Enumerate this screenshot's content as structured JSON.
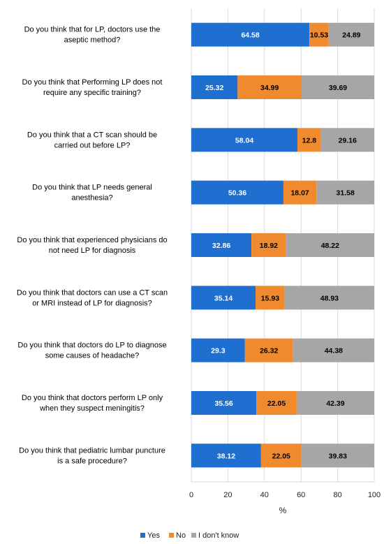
{
  "chart_data": {
    "type": "bar",
    "orientation": "horizontal",
    "stacked": true,
    "xlabel": "%",
    "xlim": [
      0,
      100
    ],
    "xticks": [
      0,
      20,
      40,
      60,
      80,
      100
    ],
    "grid": true,
    "legend_position": "bottom",
    "categories": [
      [
        "Do you think that for LP, doctors use the",
        "aseptic method?"
      ],
      [
        "Do you think that Performing LP does not",
        "require any specific training?"
      ],
      [
        "Do you think that a CT scan should be",
        "carried out before LP?"
      ],
      [
        "Do you think that LP needs general",
        "anesthesia?"
      ],
      [
        "Do you think that experienced physicians do",
        "not need LP for diagnosis"
      ],
      [
        "Do you think that doctors can use a CT scan",
        "or MRI instead of LP for diagnosis?"
      ],
      [
        "Do you think that doctors do LP to diagnose",
        "some causes of headache?"
      ],
      [
        "Do you think that doctors perform LP only",
        "when they suspect meningitis?"
      ],
      [
        "Do you think that pediatric lumbar puncture",
        "is a safe procedure?"
      ]
    ],
    "series": [
      {
        "name": "Yes",
        "color": "#1f6fd1",
        "label_color": "#ffffff",
        "values": [
          64.58,
          25.32,
          58.04,
          50.36,
          32.86,
          35.14,
          29.3,
          35.56,
          38.12
        ]
      },
      {
        "name": "No",
        "color": "#f08a2e",
        "label_color": "#000000",
        "values": [
          10.53,
          34.99,
          12.8,
          18.07,
          18.92,
          15.93,
          26.32,
          22.05,
          22.05
        ]
      },
      {
        "name": "I don't know",
        "color": "#a6a6a6",
        "label_color": "#000000",
        "values": [
          24.89,
          39.69,
          29.16,
          31.58,
          48.22,
          48.93,
          44.38,
          42.39,
          39.83
        ]
      }
    ]
  }
}
